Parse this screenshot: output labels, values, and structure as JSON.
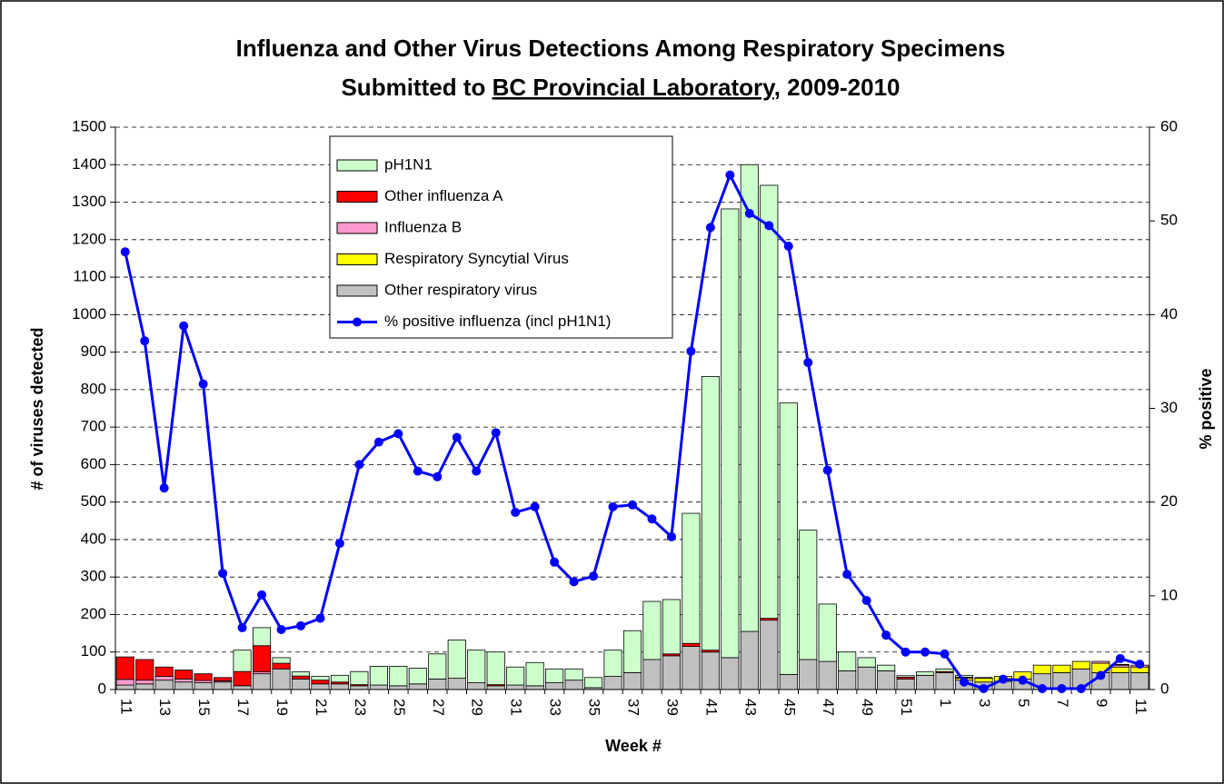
{
  "chart_data": {
    "type": "bar",
    "stacked": true,
    "title": [
      "Influenza and Other Virus Detections Among Respiratory Specimens",
      [
        "Submitted to ",
        "BC Provincial Laboratory",
        ", 2009-2010"
      ]
    ],
    "x_label": "Week #",
    "y_label": "# of viruses detected",
    "y2_label": "% positive",
    "categories": [
      "11",
      null,
      "13",
      null,
      "15",
      null,
      "17",
      null,
      "19",
      null,
      "21",
      null,
      "23",
      null,
      "25",
      null,
      "27",
      null,
      "29",
      null,
      "31",
      null,
      "33",
      null,
      "35",
      null,
      "37",
      null,
      "39",
      null,
      "41",
      null,
      "43",
      null,
      "45",
      null,
      "47",
      null,
      "49",
      null,
      "51",
      null,
      "1",
      null,
      "3",
      null,
      "5",
      null,
      "7",
      null,
      "9",
      null,
      "11"
    ],
    "series": [
      {
        "name": "Other respiratory virus",
        "color": "#c0c0c0",
        "values": [
          12,
          15,
          25,
          20,
          18,
          20,
          10,
          42,
          55,
          28,
          15,
          15,
          10,
          12,
          10,
          15,
          28,
          30,
          18,
          10,
          12,
          10,
          18,
          25,
          5,
          35,
          45,
          80,
          90,
          115,
          100,
          85,
          155,
          185,
          40,
          80,
          75,
          50,
          60,
          50,
          28,
          38,
          45,
          25,
          20,
          22,
          28,
          42,
          45,
          55,
          45,
          45,
          45
        ]
      },
      {
        "name": "Respiratory Syncytial Virus",
        "color": "#ffff00",
        "values": [
          0,
          0,
          0,
          0,
          0,
          0,
          0,
          0,
          0,
          0,
          0,
          0,
          0,
          0,
          0,
          0,
          0,
          0,
          0,
          0,
          0,
          0,
          0,
          0,
          0,
          0,
          0,
          0,
          0,
          0,
          0,
          0,
          0,
          0,
          0,
          0,
          0,
          0,
          0,
          0,
          0,
          0,
          0,
          5,
          10,
          13,
          19,
          23,
          20,
          20,
          25,
          15,
          15
        ]
      },
      {
        "name": "Influenza B",
        "color": "#ff99cc",
        "values": [
          15,
          10,
          10,
          8,
          6,
          3,
          0,
          5,
          0,
          0,
          0,
          0,
          0,
          0,
          0,
          0,
          0,
          0,
          0,
          0,
          0,
          0,
          0,
          0,
          0,
          0,
          0,
          0,
          0,
          0,
          0,
          0,
          0,
          0,
          0,
          0,
          0,
          0,
          0,
          0,
          0,
          0,
          0,
          0,
          0,
          0,
          0,
          0,
          0,
          0,
          5,
          5,
          5
        ]
      },
      {
        "name": "Other influenza A",
        "color": "#ff0000",
        "values": [
          60,
          55,
          25,
          24,
          18,
          9,
          38,
          70,
          15,
          8,
          10,
          5,
          3,
          0,
          0,
          0,
          0,
          0,
          0,
          3,
          0,
          0,
          0,
          0,
          0,
          0,
          0,
          0,
          5,
          8,
          5,
          0,
          0,
          5,
          0,
          0,
          0,
          0,
          0,
          0,
          5,
          0,
          3,
          3,
          0,
          0,
          0,
          0,
          0,
          0,
          0,
          2,
          0
        ]
      },
      {
        "name": "pH1N1",
        "color": "#ccffcc",
        "values": [
          0,
          0,
          0,
          0,
          0,
          0,
          57,
          48,
          15,
          11,
          10,
          18,
          35,
          50,
          52,
          42,
          67,
          102,
          87,
          87,
          48,
          62,
          37,
          30,
          27,
          70,
          112,
          155,
          145,
          347,
          730,
          1197,
          1245,
          1155,
          725,
          345,
          153,
          50,
          25,
          15,
          4,
          9,
          7,
          5,
          2,
          0,
          0,
          0,
          0,
          0,
          0,
          0,
          0
        ]
      },
      {
        "name": "% positive influenza (incl pH1N1)",
        "type": "line",
        "axis": "y2",
        "color": "#0000ff",
        "values": [
          46.7,
          37.2,
          21.5,
          38.8,
          32.6,
          12.4,
          6.6,
          10.1,
          6.4,
          6.8,
          7.6,
          15.6,
          24,
          26.4,
          27.3,
          23.3,
          22.7,
          26.9,
          23.3,
          27.4,
          18.9,
          19.5,
          13.6,
          11.5,
          12.1,
          19.5,
          19.7,
          18.2,
          16.3,
          36.1,
          49.3,
          54.9,
          50.8,
          49.5,
          47.3,
          34.9,
          23.4,
          12.3,
          9.5,
          5.8,
          4,
          4,
          3.8,
          0.8,
          0.1,
          1.1,
          1,
          0.1,
          0.1,
          0.1,
          1.5,
          3.3,
          2.7
        ]
      }
    ],
    "ylim": [
      0,
      1500
    ],
    "yticks": [
      0,
      100,
      200,
      300,
      400,
      500,
      600,
      700,
      800,
      900,
      1000,
      1100,
      1200,
      1300,
      1400,
      1500
    ],
    "y2lim": [
      0,
      60
    ],
    "y2ticks": [
      0,
      10,
      20,
      30,
      40,
      50,
      60
    ],
    "grid": true
  }
}
